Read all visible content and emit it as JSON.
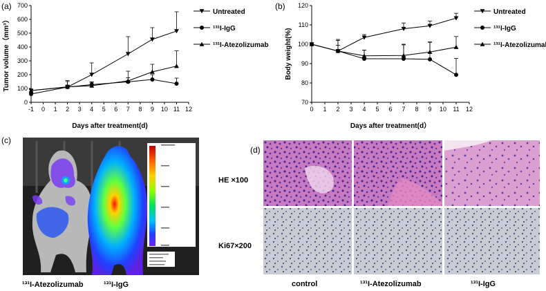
{
  "panel_letters": [
    "(a)",
    "(b)",
    "(c)",
    "(d)"
  ],
  "chart_data": [
    {
      "type": "line",
      "panel": "(a)",
      "title": "",
      "xlabel": "Days after treatment(d)",
      "ylabel": "Tumor volume（mm³）",
      "xlim": [
        -1,
        12
      ],
      "ylim": [
        0,
        700
      ],
      "xticks": [
        "-1",
        "0",
        "1",
        "2",
        "3",
        "4",
        "5",
        "6",
        "7",
        "8",
        "9",
        "10",
        "11",
        "12"
      ],
      "yticks": [
        "0",
        "100",
        "200",
        "300",
        "400",
        "500",
        "600",
        "700"
      ],
      "legend_position": "top-right",
      "series": [
        {
          "name": "Untreated",
          "marker": "triangle-down",
          "x": [
            -1,
            2,
            4,
            7,
            9,
            11
          ],
          "y": [
            85,
            110,
            200,
            350,
            455,
            515
          ],
          "err": [
            10,
            40,
            85,
            125,
            85,
            140
          ]
        },
        {
          "name": "¹³¹I-IgG",
          "marker": "circle",
          "x": [
            -1,
            2,
            4,
            7,
            9,
            11
          ],
          "y": [
            60,
            110,
            128,
            148,
            165,
            135
          ],
          "err": [
            10,
            15,
            20,
            30,
            35,
            40
          ]
        },
        {
          "name": "¹³¹I-Atezolizumab",
          "marker": "triangle-up",
          "x": [
            -1,
            2,
            4,
            7,
            9,
            11
          ],
          "y": [
            85,
            112,
            120,
            155,
            220,
            262
          ],
          "err": [
            10,
            45,
            25,
            70,
            55,
            110
          ]
        }
      ]
    },
    {
      "type": "line",
      "panel": "(b)",
      "title": "",
      "xlabel": "Days after treatment(d）",
      "ylabel": "Body weight(%)",
      "xlim": [
        0,
        12
      ],
      "ylim": [
        70,
        120
      ],
      "xticks": [
        "0",
        "1",
        "2",
        "3",
        "4",
        "5",
        "6",
        "7",
        "8",
        "9",
        "10",
        "11",
        "12"
      ],
      "yticks": [
        "70",
        "80",
        "90",
        "100",
        "110",
        "120"
      ],
      "legend_position": "top-right",
      "series": [
        {
          "name": "Untreated",
          "marker": "triangle-down",
          "x": [
            0,
            2,
            4,
            7,
            9,
            11
          ],
          "y": [
            100,
            96.5,
            103.5,
            108,
            109.5,
            113.5
          ],
          "err": [
            0,
            3,
            1.5,
            3,
            2.5,
            2.5
          ]
        },
        {
          "name": "¹³¹I-IgG",
          "marker": "circle",
          "x": [
            0,
            2,
            4,
            7,
            9,
            11
          ],
          "y": [
            100,
            96.5,
            92.5,
            92.5,
            92.2,
            84.2
          ],
          "err": [
            0,
            6,
            4.5,
            7.5,
            9,
            8.5
          ]
        },
        {
          "name": "¹³¹I-Atezolizumab",
          "marker": "triangle-up",
          "x": [
            0,
            2,
            4,
            7,
            9,
            11
          ],
          "y": [
            100,
            96.5,
            94,
            94.2,
            96,
            98.5
          ],
          "err": [
            0,
            5.5,
            3,
            5.5,
            5,
            5.5
          ]
        }
      ]
    }
  ],
  "panel_c": {
    "labels": [
      "¹³¹I-Atezolizumab",
      "¹³¹I-IgG"
    ],
    "colorbar_title": "Luminescence",
    "colorbar_colors": [
      "#c00000",
      "#ff6000",
      "#ffd000",
      "#90ff00",
      "#00e060",
      "#00c0ff",
      "#2040ff",
      "#7020ff"
    ]
  },
  "panel_d": {
    "row_labels": [
      "HE ×100",
      "Ki67×200"
    ],
    "col_labels": [
      "control",
      "¹³¹I-Atezolizumab",
      "¹³¹I-IgG"
    ]
  }
}
